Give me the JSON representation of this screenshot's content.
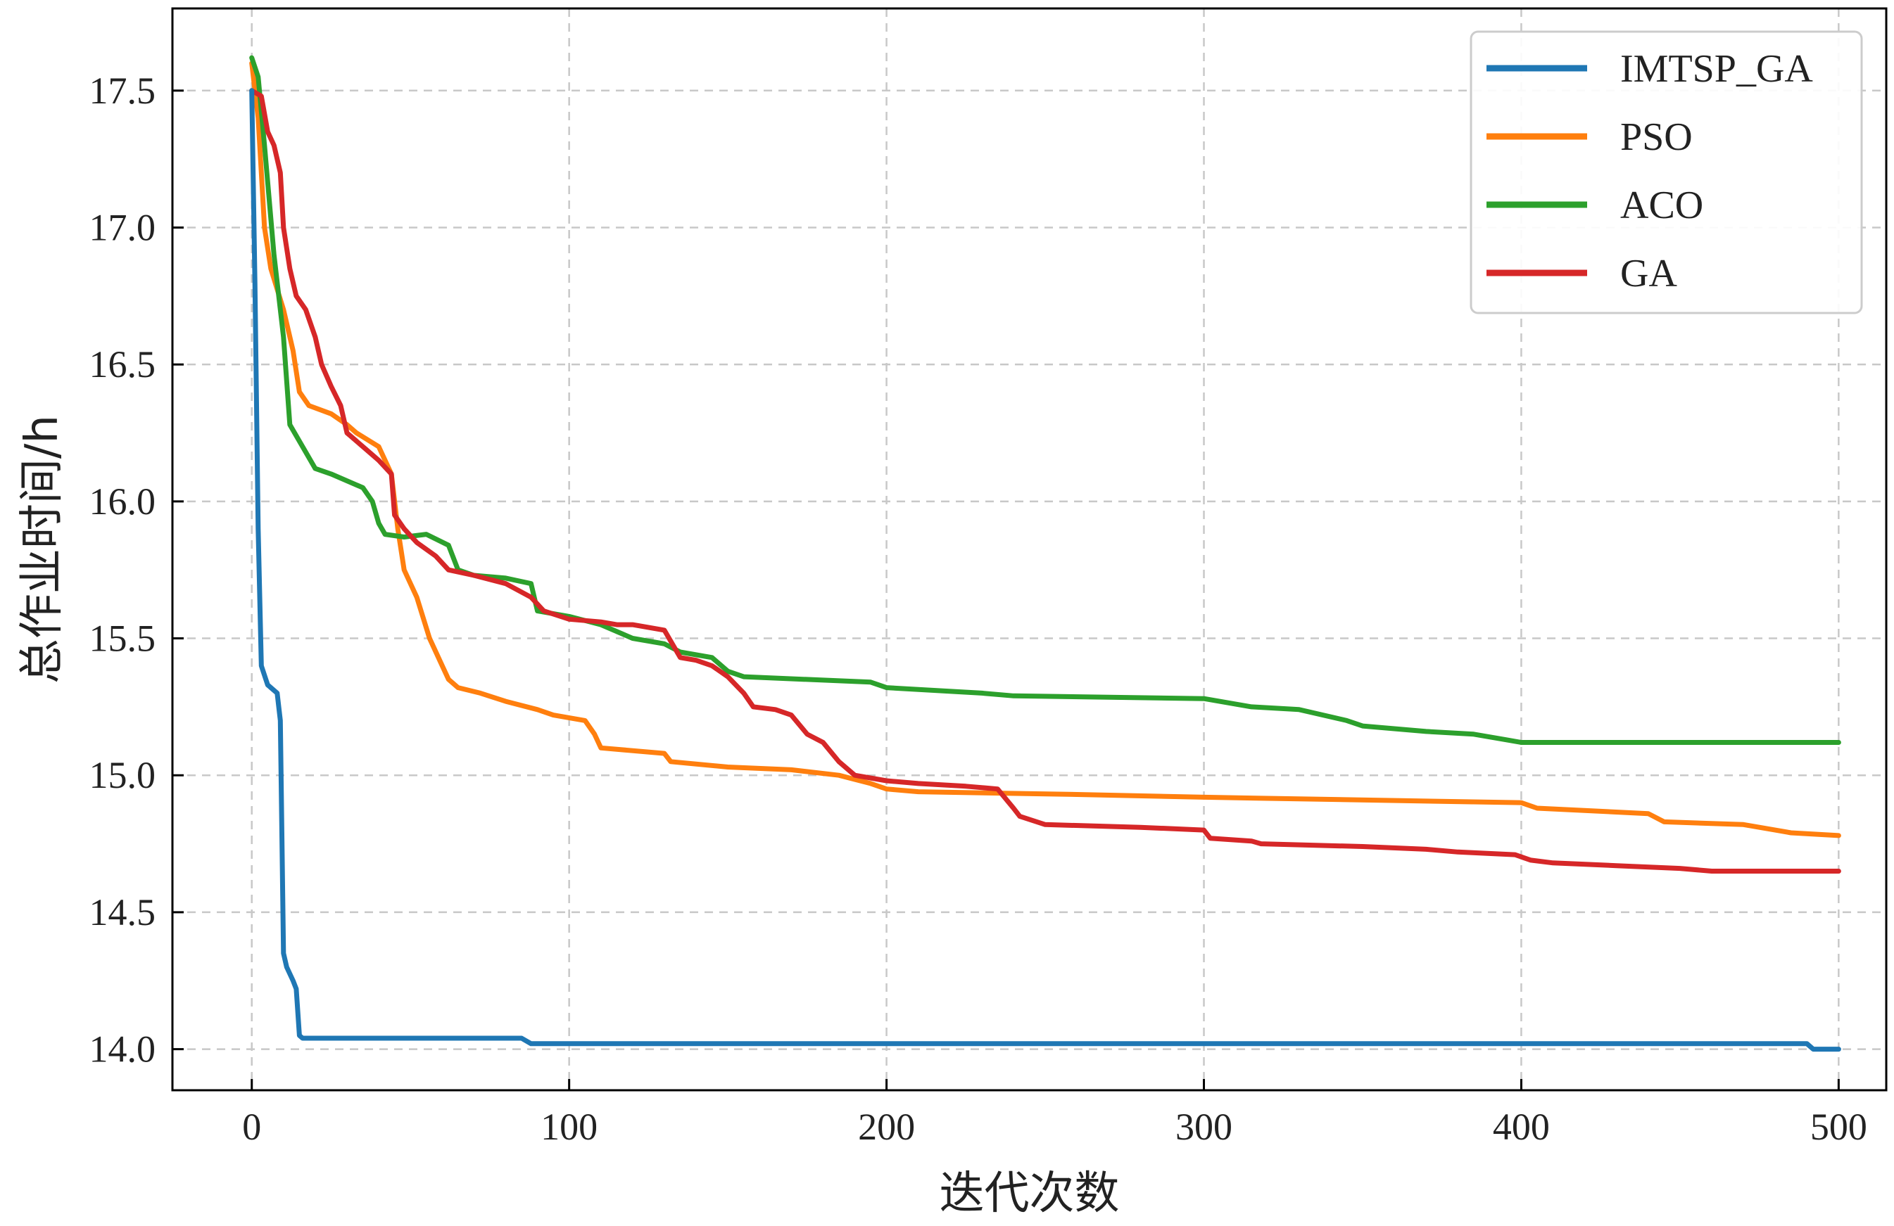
{
  "chart_data": {
    "type": "line",
    "xlabel": "迭代次数",
    "ylabel": "总作业时间/h",
    "xlim": [
      -25,
      515
    ],
    "ylim": [
      13.85,
      17.8
    ],
    "xticks": [
      0,
      100,
      200,
      300,
      400,
      500
    ],
    "yticks": [
      14.0,
      14.5,
      15.0,
      15.5,
      16.0,
      16.5,
      17.0,
      17.5
    ],
    "grid": true,
    "legend_position": "top-right",
    "series": [
      {
        "name": "IMTSP_GA",
        "color": "#1f77b4",
        "points": [
          [
            0,
            17.5
          ],
          [
            1,
            16.8
          ],
          [
            2,
            15.9
          ],
          [
            3,
            15.4
          ],
          [
            5,
            15.33
          ],
          [
            8,
            15.3
          ],
          [
            9,
            15.2
          ],
          [
            10,
            14.35
          ],
          [
            11,
            14.3
          ],
          [
            13,
            14.25
          ],
          [
            14,
            14.22
          ],
          [
            15,
            14.05
          ],
          [
            16,
            14.04
          ],
          [
            85,
            14.04
          ],
          [
            88,
            14.02
          ],
          [
            490,
            14.02
          ],
          [
            492,
            14.0
          ],
          [
            500,
            14.0
          ]
        ]
      },
      {
        "name": "PSO",
        "color": "#ff7f0e",
        "points": [
          [
            0,
            17.6
          ],
          [
            2,
            17.4
          ],
          [
            4,
            17.0
          ],
          [
            6,
            16.85
          ],
          [
            10,
            16.7
          ],
          [
            13,
            16.55
          ],
          [
            15,
            16.4
          ],
          [
            18,
            16.35
          ],
          [
            25,
            16.32
          ],
          [
            30,
            16.28
          ],
          [
            33,
            16.25
          ],
          [
            40,
            16.2
          ],
          [
            44,
            16.1
          ],
          [
            46,
            15.9
          ],
          [
            48,
            15.75
          ],
          [
            52,
            15.65
          ],
          [
            56,
            15.5
          ],
          [
            60,
            15.4
          ],
          [
            62,
            15.35
          ],
          [
            65,
            15.32
          ],
          [
            72,
            15.3
          ],
          [
            80,
            15.27
          ],
          [
            90,
            15.24
          ],
          [
            95,
            15.22
          ],
          [
            105,
            15.2
          ],
          [
            108,
            15.15
          ],
          [
            110,
            15.1
          ],
          [
            130,
            15.08
          ],
          [
            132,
            15.05
          ],
          [
            150,
            15.03
          ],
          [
            170,
            15.02
          ],
          [
            185,
            15.0
          ],
          [
            195,
            14.97
          ],
          [
            200,
            14.95
          ],
          [
            210,
            14.94
          ],
          [
            260,
            14.93
          ],
          [
            300,
            14.92
          ],
          [
            400,
            14.9
          ],
          [
            405,
            14.88
          ],
          [
            440,
            14.86
          ],
          [
            445,
            14.83
          ],
          [
            470,
            14.82
          ],
          [
            480,
            14.8
          ],
          [
            485,
            14.79
          ],
          [
            500,
            14.78
          ]
        ]
      },
      {
        "name": "ACO",
        "color": "#2ca02c",
        "points": [
          [
            0,
            17.62
          ],
          [
            2,
            17.55
          ],
          [
            4,
            17.3
          ],
          [
            7,
            16.9
          ],
          [
            10,
            16.6
          ],
          [
            12,
            16.28
          ],
          [
            16,
            16.2
          ],
          [
            20,
            16.12
          ],
          [
            25,
            16.1
          ],
          [
            35,
            16.05
          ],
          [
            38,
            16.0
          ],
          [
            40,
            15.92
          ],
          [
            42,
            15.88
          ],
          [
            48,
            15.87
          ],
          [
            55,
            15.88
          ],
          [
            62,
            15.84
          ],
          [
            65,
            15.75
          ],
          [
            70,
            15.73
          ],
          [
            80,
            15.72
          ],
          [
            88,
            15.7
          ],
          [
            90,
            15.6
          ],
          [
            100,
            15.58
          ],
          [
            110,
            15.55
          ],
          [
            120,
            15.5
          ],
          [
            130,
            15.48
          ],
          [
            135,
            15.45
          ],
          [
            145,
            15.43
          ],
          [
            150,
            15.38
          ],
          [
            155,
            15.36
          ],
          [
            195,
            15.34
          ],
          [
            200,
            15.32
          ],
          [
            230,
            15.3
          ],
          [
            240,
            15.29
          ],
          [
            300,
            15.28
          ],
          [
            315,
            15.25
          ],
          [
            330,
            15.24
          ],
          [
            345,
            15.2
          ],
          [
            350,
            15.18
          ],
          [
            370,
            15.16
          ],
          [
            385,
            15.15
          ],
          [
            395,
            15.13
          ],
          [
            400,
            15.12
          ],
          [
            500,
            15.12
          ]
        ]
      },
      {
        "name": "GA",
        "color": "#d62728",
        "points": [
          [
            0,
            17.5
          ],
          [
            3,
            17.48
          ],
          [
            5,
            17.35
          ],
          [
            7,
            17.3
          ],
          [
            9,
            17.2
          ],
          [
            10,
            17.0
          ],
          [
            12,
            16.85
          ],
          [
            14,
            16.75
          ],
          [
            17,
            16.7
          ],
          [
            20,
            16.6
          ],
          [
            22,
            16.5
          ],
          [
            25,
            16.42
          ],
          [
            28,
            16.35
          ],
          [
            30,
            16.25
          ],
          [
            35,
            16.2
          ],
          [
            40,
            16.15
          ],
          [
            44,
            16.1
          ],
          [
            45,
            15.95
          ],
          [
            48,
            15.9
          ],
          [
            52,
            15.85
          ],
          [
            58,
            15.8
          ],
          [
            62,
            15.75
          ],
          [
            70,
            15.73
          ],
          [
            80,
            15.7
          ],
          [
            88,
            15.65
          ],
          [
            92,
            15.6
          ],
          [
            100,
            15.57
          ],
          [
            110,
            15.56
          ],
          [
            115,
            15.55
          ],
          [
            120,
            15.55
          ],
          [
            130,
            15.53
          ],
          [
            135,
            15.43
          ],
          [
            140,
            15.42
          ],
          [
            145,
            15.4
          ],
          [
            150,
            15.36
          ],
          [
            155,
            15.3
          ],
          [
            158,
            15.25
          ],
          [
            165,
            15.24
          ],
          [
            170,
            15.22
          ],
          [
            175,
            15.15
          ],
          [
            180,
            15.12
          ],
          [
            185,
            15.05
          ],
          [
            190,
            15.0
          ],
          [
            200,
            14.98
          ],
          [
            210,
            14.97
          ],
          [
            225,
            14.96
          ],
          [
            235,
            14.95
          ],
          [
            240,
            14.88
          ],
          [
            242,
            14.85
          ],
          [
            250,
            14.82
          ],
          [
            280,
            14.81
          ],
          [
            300,
            14.8
          ],
          [
            302,
            14.77
          ],
          [
            315,
            14.76
          ],
          [
            318,
            14.75
          ],
          [
            350,
            14.74
          ],
          [
            370,
            14.73
          ],
          [
            380,
            14.72
          ],
          [
            398,
            14.71
          ],
          [
            403,
            14.69
          ],
          [
            410,
            14.68
          ],
          [
            430,
            14.67
          ],
          [
            450,
            14.66
          ],
          [
            460,
            14.65
          ],
          [
            500,
            14.65
          ]
        ]
      }
    ]
  }
}
